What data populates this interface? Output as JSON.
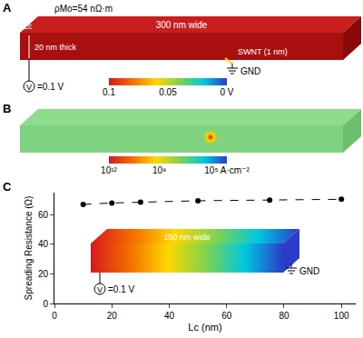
{
  "panel_a": {
    "label": "A",
    "material": "ρMo=54 nΩ·m",
    "length_label": "Lc",
    "width_label": "300 nm wide",
    "thickness_label": "20 nm thick",
    "contact_label": "SWNT (1 nm)",
    "ground_label": "GND",
    "source": {
      "symbol": "V",
      "label": "=0.1 V"
    },
    "colorbar": {
      "range": [
        0.1,
        0
      ],
      "ticks": [
        0.1,
        0.05,
        {
          "value": 0,
          "label": "0 V"
        }
      ]
    }
  },
  "panel_b": {
    "label": "B",
    "colorbar": {
      "range": [
        1000000000000.0,
        100000.0
      ],
      "log": true,
      "ticks": [
        {
          "value": 1000000000000.0,
          "label": "10¹²"
        },
        {
          "value": 1000000000.0,
          "label": "10⁹"
        },
        {
          "value": 100000.0,
          "label": "10⁵ A·cm⁻²"
        }
      ]
    }
  },
  "chart_data": {
    "label": "C",
    "type": "line",
    "marker": "circle",
    "line_style": "dash",
    "color": "#000000",
    "x": [
      10,
      20,
      30,
      50,
      75,
      100
    ],
    "values": [
      67,
      68,
      68.5,
      69.5,
      70,
      70.5
    ],
    "xlabel": "Lc (nm)",
    "ylabel": "Spreading Resistance (Ω)",
    "xlim": [
      0,
      105
    ],
    "ylim": [
      0,
      75
    ],
    "xticks": [
      0,
      20,
      40,
      60,
      80,
      100
    ],
    "yticks": [
      0,
      20,
      40,
      60
    ],
    "inset": {
      "width_label": "150 nm wide",
      "ground_label": "GND",
      "source": {
        "symbol": "V",
        "label": "=0.1 V"
      }
    }
  }
}
